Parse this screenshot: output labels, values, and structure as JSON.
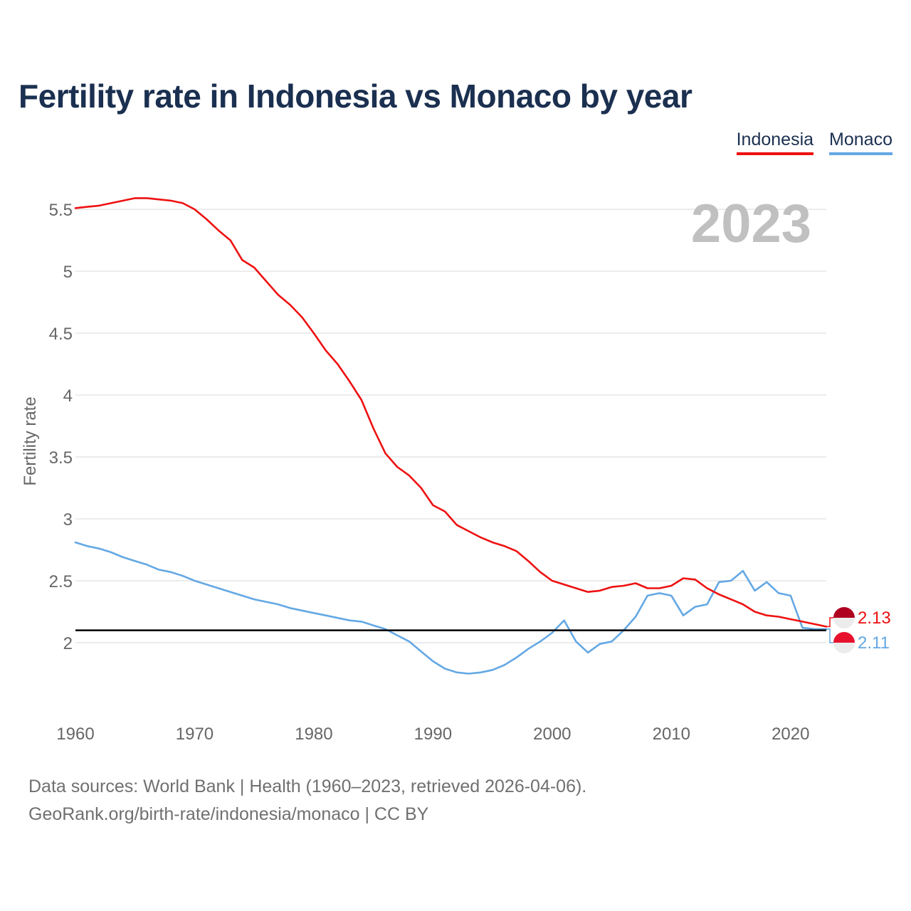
{
  "title": "Fertility rate in Indonesia vs Monaco by year",
  "year_label": "2023",
  "footer": {
    "line1": "Data sources: World Bank | Health (1960–2023, retrieved 2026-04-06).",
    "line2": "GeoRank.org/birth-rate/indonesia/monaco | CC BY"
  },
  "colors": {
    "indonesia": "#ee1111",
    "monaco": "#64a8e4",
    "reference": "#000000",
    "grid": "#e6e6e6",
    "tick": "#666666",
    "year": "#c0c0c0"
  },
  "chart_data": {
    "type": "line",
    "title": "Fertility rate in Indonesia vs Monaco by year",
    "xlabel": "",
    "ylabel": "Fertility rate",
    "xlim": [
      1960,
      2023
    ],
    "ylim": [
      1.5,
      5.65
    ],
    "x_ticks": [
      1960,
      1970,
      1980,
      1990,
      2000,
      2010,
      2020
    ],
    "y_ticks": [
      2,
      2.5,
      3,
      3.5,
      4,
      4.5,
      5,
      5.5
    ],
    "y_tick_labels": [
      "2",
      "2.5",
      "3",
      "3.5",
      "4",
      "4.5",
      "5",
      "5.5"
    ],
    "grid": true,
    "legend_position": "top-right",
    "reference_line": 2.1,
    "x": [
      1960,
      1961,
      1962,
      1963,
      1964,
      1965,
      1966,
      1967,
      1968,
      1969,
      1970,
      1971,
      1972,
      1973,
      1974,
      1975,
      1976,
      1977,
      1978,
      1979,
      1980,
      1981,
      1982,
      1983,
      1984,
      1985,
      1986,
      1987,
      1988,
      1989,
      1990,
      1991,
      1992,
      1993,
      1994,
      1995,
      1996,
      1997,
      1998,
      1999,
      2000,
      2001,
      2002,
      2003,
      2004,
      2005,
      2006,
      2007,
      2008,
      2009,
      2010,
      2011,
      2012,
      2013,
      2014,
      2015,
      2016,
      2017,
      2018,
      2019,
      2020,
      2021,
      2022,
      2023
    ],
    "series": [
      {
        "name": "Indonesia",
        "color": "#ee1111",
        "end_label": "2.13",
        "values": [
          5.51,
          5.52,
          5.53,
          5.55,
          5.57,
          5.59,
          5.59,
          5.58,
          5.57,
          5.55,
          5.5,
          5.42,
          5.33,
          5.25,
          5.09,
          5.03,
          4.92,
          4.81,
          4.73,
          4.63,
          4.5,
          4.36,
          4.25,
          4.11,
          3.96,
          3.73,
          3.53,
          3.42,
          3.35,
          3.25,
          3.11,
          3.06,
          2.95,
          2.9,
          2.85,
          2.81,
          2.78,
          2.74,
          2.66,
          2.57,
          2.5,
          2.47,
          2.44,
          2.41,
          2.42,
          2.45,
          2.46,
          2.48,
          2.44,
          2.44,
          2.46,
          2.52,
          2.51,
          2.44,
          2.39,
          2.35,
          2.31,
          2.25,
          2.22,
          2.21,
          2.19,
          2.17,
          2.15,
          2.13
        ]
      },
      {
        "name": "Monaco",
        "color": "#64a8e4",
        "end_label": "2.11",
        "values": [
          2.81,
          2.78,
          2.76,
          2.73,
          2.69,
          2.66,
          2.63,
          2.59,
          2.57,
          2.54,
          2.5,
          2.47,
          2.44,
          2.41,
          2.38,
          2.35,
          2.33,
          2.31,
          2.28,
          2.26,
          2.24,
          2.22,
          2.2,
          2.18,
          2.17,
          2.14,
          2.11,
          2.06,
          2.01,
          1.93,
          1.85,
          1.79,
          1.76,
          1.75,
          1.76,
          1.78,
          1.82,
          1.88,
          1.95,
          2.01,
          2.08,
          2.18,
          2.01,
          1.92,
          1.99,
          2.01,
          2.1,
          2.21,
          2.38,
          2.4,
          2.38,
          2.22,
          2.29,
          2.31,
          2.49,
          2.5,
          2.58,
          2.42,
          2.49,
          2.4,
          2.38,
          2.12,
          2.11,
          2.11
        ]
      }
    ]
  }
}
